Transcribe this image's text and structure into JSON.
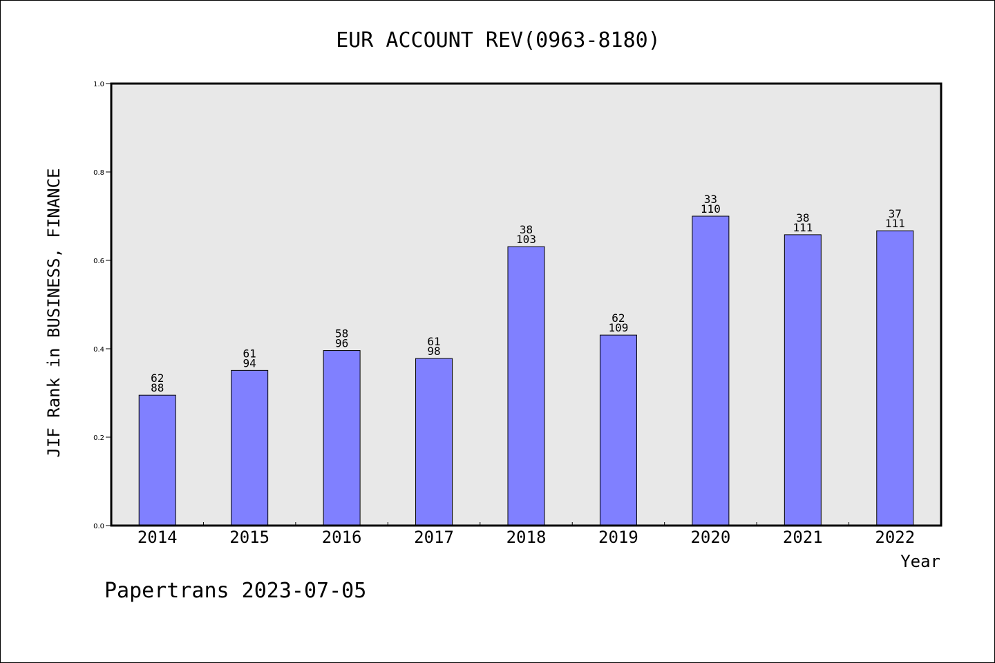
{
  "chart_data": {
    "type": "bar",
    "title": "EUR ACCOUNT REV(0963-8180)",
    "xlabel": "Year",
    "ylabel": "JIF Rank in BUSINESS, FINANCE",
    "ylim": [
      0.0,
      1.0
    ],
    "yticks": [
      "0.0",
      "0.2",
      "0.4",
      "0.6",
      "0.8",
      "1.0"
    ],
    "grid": false,
    "categories": [
      "2014",
      "2015",
      "2016",
      "2017",
      "2018",
      "2019",
      "2020",
      "2021",
      "2022"
    ],
    "values": [
      0.295,
      0.351,
      0.396,
      0.378,
      0.631,
      0.431,
      0.7,
      0.658,
      0.667
    ],
    "ranks": [
      "62",
      "61",
      "58",
      "61",
      "38",
      "62",
      "33",
      "38",
      "37"
    ],
    "totals": [
      "88",
      "94",
      "96",
      "98",
      "103",
      "109",
      "110",
      "111",
      "111"
    ],
    "bar_color": "#8080ff",
    "plot_background": "#e8e8e8"
  },
  "footer": {
    "text": "Papertrans 2023-07-05"
  }
}
